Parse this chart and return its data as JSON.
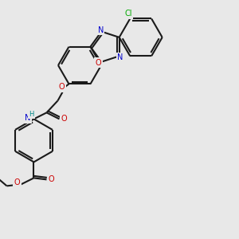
{
  "bg_color": "#e8e8e8",
  "bond_color": "#1a1a1a",
  "atom_colors": {
    "O": "#cc0000",
    "N": "#0000cc",
    "Cl": "#00aa00",
    "H": "#008888",
    "C": "#1a1a1a"
  },
  "figsize": [
    3.0,
    3.0
  ],
  "dpi": 100
}
